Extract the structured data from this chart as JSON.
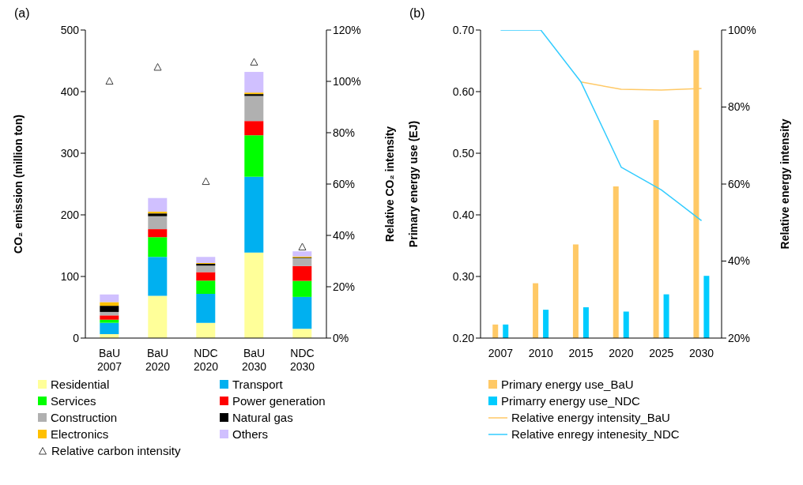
{
  "chart_data": [
    {
      "type": "bar",
      "title": "(a)",
      "stacked": true,
      "ylabel": "CO₂ emission (million ton)",
      "y2label": "Relative CO₂ intensity",
      "legend": "bottom",
      "categories": [
        "BaU\n2007",
        "BaU\n2020",
        "NDC\n2020",
        "BaU\n2030",
        "NDC\n2030"
      ],
      "ylim": [
        0,
        500
      ],
      "yticks": [
        0,
        100,
        200,
        300,
        400,
        500
      ],
      "y2lim": [
        0,
        120
      ],
      "y2ticks": [
        {
          "value": 0,
          "label": "0%"
        },
        {
          "value": 20,
          "label": "20%"
        },
        {
          "value": 40,
          "label": "40%"
        },
        {
          "value": 60,
          "label": "60%"
        },
        {
          "value": 80,
          "label": "80%"
        },
        {
          "value": 100,
          "label": "100%"
        },
        {
          "value": 120,
          "label": "120%"
        }
      ],
      "series": [
        {
          "name": "Residential",
          "color": "#ffff99",
          "values": [
            6.4,
            68.5,
            24.8,
            138.7,
            15
          ]
        },
        {
          "name": "Transport",
          "color": "#00b0f0",
          "values": [
            18.4,
            63.3,
            47,
            123.3,
            51.8
          ]
        },
        {
          "name": "Services",
          "color": "#00ff00",
          "values": [
            5,
            32,
            21.4,
            67.2,
            26.1
          ]
        },
        {
          "name": "Power generation",
          "color": "#ff0000",
          "values": [
            7,
            13,
            13.7,
            23.1,
            24
          ]
        },
        {
          "name": "Construction",
          "color": "#b0b0b0",
          "values": [
            5.6,
            21,
            10.7,
            40.7,
            12.8
          ]
        },
        {
          "name": "Natural gas",
          "color": "#000000",
          "values": [
            10,
            4.5,
            3,
            3,
            0.9
          ]
        },
        {
          "name": "Electronics",
          "color": "#ffc000",
          "values": [
            6,
            3,
            1.3,
            2.5,
            1.7
          ]
        },
        {
          "name": "Others",
          "color": "#d0c0ff",
          "values": [
            12.4,
            22,
            9.8,
            33.5,
            8.5
          ]
        },
        {
          "name": "Relative carbon intensity",
          "type": "scatter",
          "axis": "y2",
          "marker": "triangle",
          "color": "#404040",
          "values": [
            100,
            105.4,
            60.9,
            107.4,
            35.4
          ]
        }
      ]
    },
    {
      "type": "bar",
      "title": "(b)",
      "ylabel": "Primary energy use (EJ)",
      "y2label": "Relative energy intensity",
      "legend": "bottom",
      "categories": [
        "2007",
        "2010",
        "2015",
        "2020",
        "2025",
        "2030"
      ],
      "ylim": [
        0.2,
        0.7
      ],
      "yticks": [
        {
          "value": 0.2,
          "label": "0.20"
        },
        {
          "value": 0.3,
          "label": "0.30"
        },
        {
          "value": 0.4,
          "label": "0.40"
        },
        {
          "value": 0.5,
          "label": "0.50"
        },
        {
          "value": 0.6,
          "label": "0.60"
        },
        {
          "value": 0.7,
          "label": "0.70"
        }
      ],
      "y2lim": [
        20,
        100
      ],
      "y2ticks": [
        {
          "value": 20,
          "label": "20%"
        },
        {
          "value": 40,
          "label": "40%"
        },
        {
          "value": 60,
          "label": "60%"
        },
        {
          "value": 80,
          "label": "80%"
        },
        {
          "value": 100,
          "label": "100%"
        }
      ],
      "series": [
        {
          "name": "Primary energy use_BaU",
          "color": "#ffc966",
          "values": [
            0.222,
            0.289,
            0.352,
            0.446,
            0.554,
            0.667
          ]
        },
        {
          "name": "Primarry energy use_NDC",
          "color": "#00ccff",
          "values": [
            0.222,
            0.246,
            0.25,
            0.243,
            0.271,
            0.301
          ]
        },
        {
          "name": "Relative energy intensity_BaU",
          "type": "line",
          "axis": "y2",
          "color": "#ffc966",
          "values": [
            null,
            null,
            86.5,
            84.6,
            84.4,
            84.8
          ]
        },
        {
          "name": "Relative enregy intenesity_NDC",
          "type": "line",
          "axis": "y2",
          "color": "#33ccff",
          "values": [
            100,
            100,
            86.5,
            64.4,
            58.5,
            50.5
          ]
        }
      ]
    }
  ]
}
